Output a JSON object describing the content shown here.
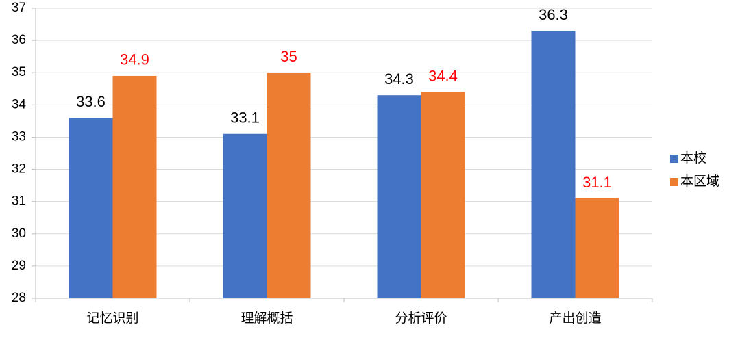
{
  "chart_data": {
    "type": "bar",
    "categories": [
      "记忆识别",
      "理解概括",
      "分析评价",
      "产出创造"
    ],
    "series": [
      {
        "name": "本校",
        "color": "#4472c4",
        "label_color": "#000000",
        "values": [
          33.6,
          33.1,
          34.3,
          36.3
        ]
      },
      {
        "name": "本区域",
        "color": "#ed7d31",
        "label_color": "#ff0000",
        "values": [
          34.9,
          35,
          34.4,
          31.1
        ]
      }
    ],
    "ylim": [
      28,
      37
    ],
    "yticks": [
      28,
      29,
      30,
      31,
      32,
      33,
      34,
      35,
      36,
      37
    ],
    "grid": true,
    "legend": "right"
  }
}
